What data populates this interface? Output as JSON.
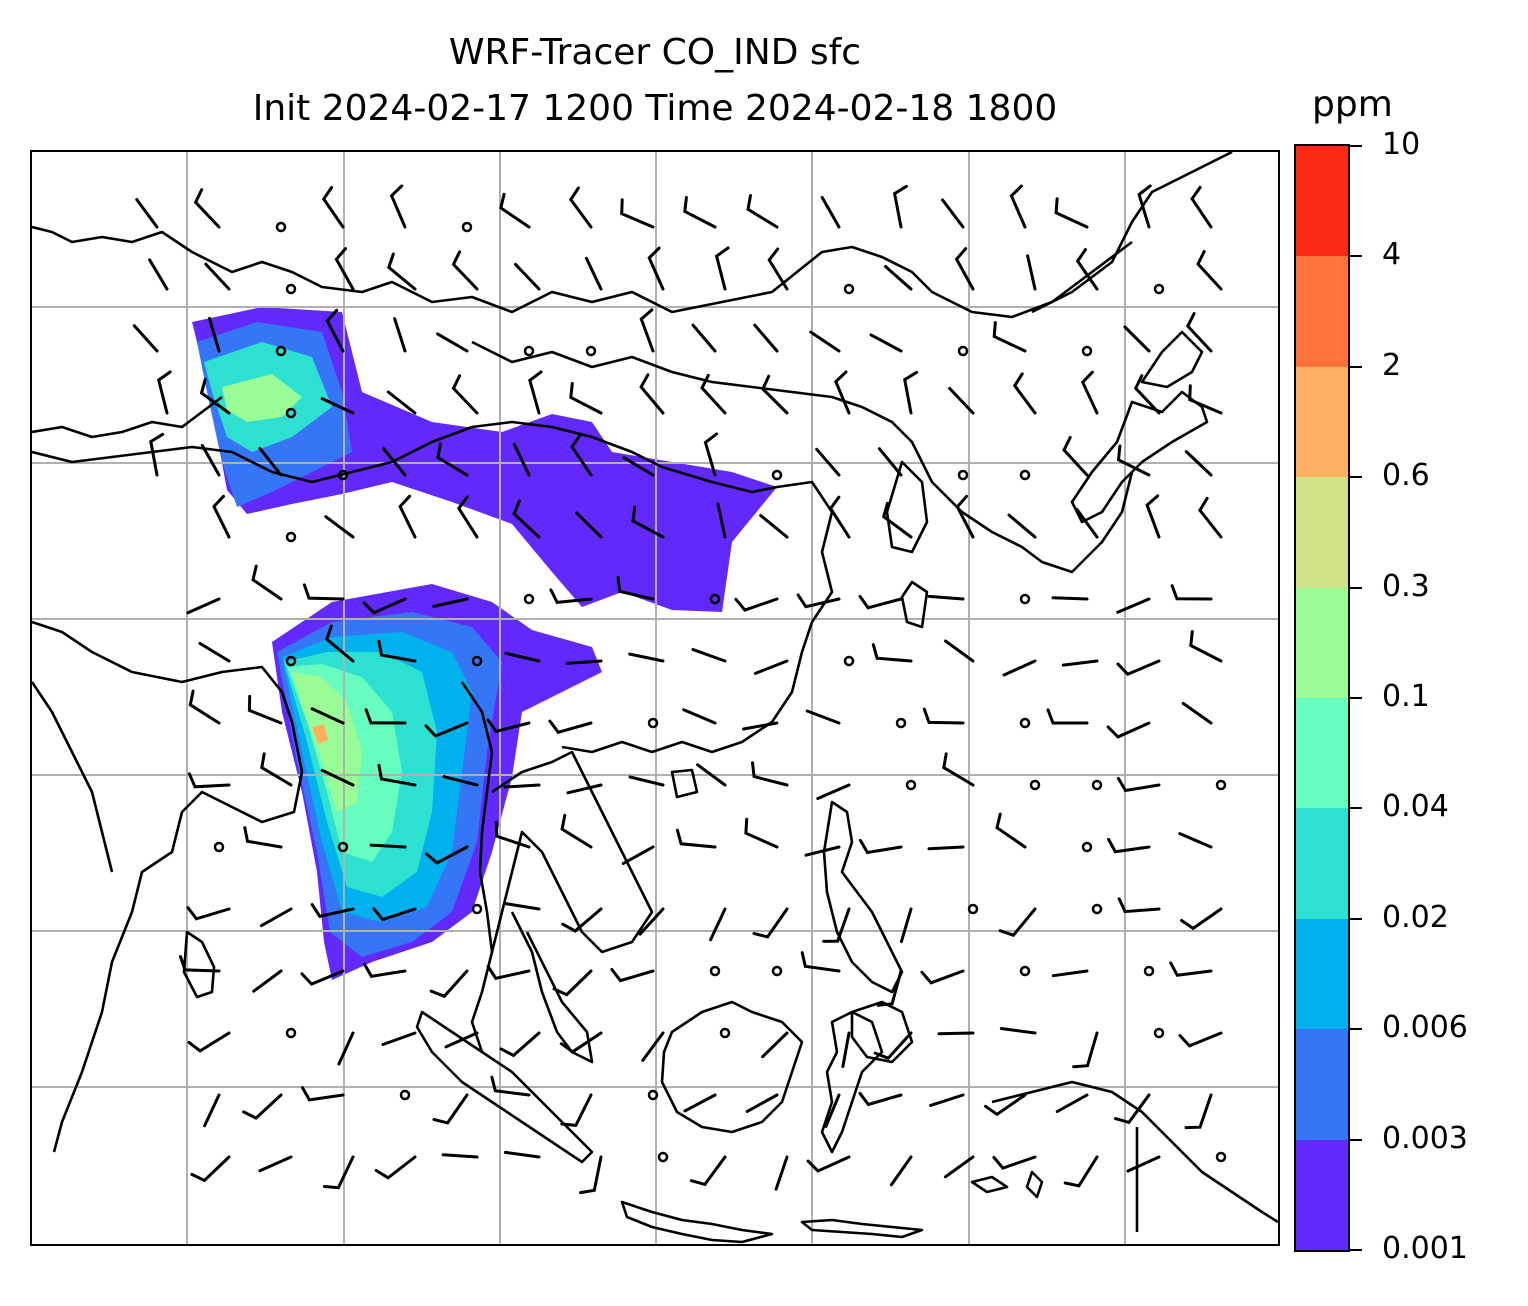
{
  "title": "WRF-Tracer CO_IND sfc",
  "subtitle": "Init 2024-02-17 1200 Time 2024-02-18 1800",
  "colorbar": {
    "unit": "ppm",
    "levels": [
      "0.001",
      "0.003",
      "0.006",
      "0.02",
      "0.04",
      "0.1",
      "0.3",
      "0.6",
      "2",
      "4",
      "10"
    ],
    "colors": [
      "#6129fc",
      "#3476f6",
      "#00b1ee",
      "#2ee0d2",
      "#66fdbf",
      "#9afc97",
      "#cee287",
      "#fcb062",
      "#fd7239",
      "#fc2818"
    ]
  },
  "map": {
    "gridlines": true,
    "grid_color": "#b0b0b0",
    "coastline_color": "#000000",
    "overlay": "wind-barbs",
    "plume_colors": {
      "low": "#6129fc",
      "mid": "#3476f6",
      "mid2": "#00b1ee",
      "mid3": "#2ee0d2",
      "high": "#66fdbf",
      "higher": "#9afc97",
      "peak": "#fcb062"
    }
  }
}
